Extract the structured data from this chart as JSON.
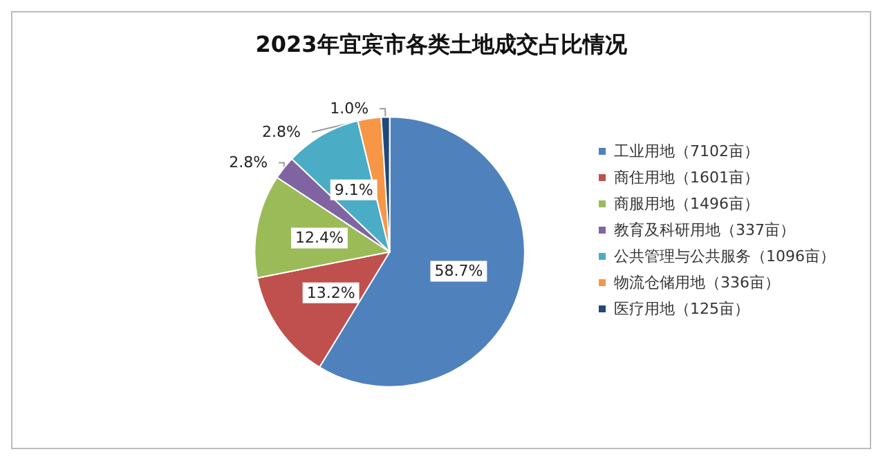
{
  "chart_data": {
    "type": "pie",
    "title": "2023年宜宾市各类土地成交占比情况",
    "categories": [
      "工业用地（7102亩）",
      "商住用地（1601亩）",
      "商服用地（1496亩）",
      "教育及科研用地（337亩）",
      "公共管理与公共服务（1096亩）",
      "物流仓储用地（336亩）",
      "医疗用地（125亩）"
    ],
    "values": [
      58.7,
      13.2,
      12.4,
      2.8,
      9.1,
      2.8,
      1.0
    ],
    "value_labels": [
      "58.7%",
      "13.2%",
      "12.4%",
      "2.8%",
      "9.1%",
      "2.8%",
      "1.0%"
    ],
    "colors": [
      "#4f81bd",
      "#c0504d",
      "#9bbb59",
      "#8064a2",
      "#4bacc6",
      "#f79646",
      "#1f497d"
    ],
    "legend": "right"
  }
}
